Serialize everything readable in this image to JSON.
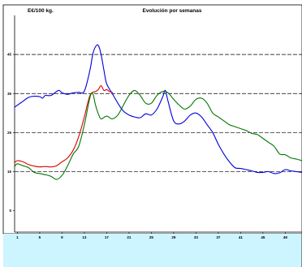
{
  "chart_data": {
    "type": "line",
    "title": "Evolución por semanas",
    "ylabel": "E€/100 kg.",
    "xlabel": "",
    "x_ticks": [
      1,
      5,
      9,
      13,
      17,
      21,
      25,
      29,
      33,
      37,
      41,
      45,
      49
    ],
    "y_ticks": [
      5,
      15,
      25,
      35,
      45
    ],
    "xlim": [
      0.5,
      52
    ],
    "ylim": [
      -0.5,
      55
    ],
    "grid": {
      "horizontal_dashed": [
        15,
        25,
        35,
        45
      ]
    },
    "legend": "none",
    "series": [
      {
        "color": "#0000dd",
        "x": [
          0.5,
          1,
          2,
          3,
          4,
          5,
          5.5,
          6,
          7,
          8,
          8.5,
          9,
          10,
          11,
          12,
          13,
          14,
          14.5,
          15,
          15.5,
          16,
          16.5,
          17,
          18,
          19,
          20,
          21,
          22,
          23,
          24,
          25,
          26,
          27,
          27.5,
          28,
          29,
          30,
          31,
          32,
          33,
          34,
          35,
          36,
          37,
          38,
          39,
          40,
          41,
          42,
          43,
          44,
          45,
          46,
          47,
          48,
          49,
          50,
          51,
          52
        ],
        "values": [
          31.5,
          32,
          33,
          34,
          34.3,
          34.2,
          33.8,
          34.5,
          34.5,
          35.5,
          35.8,
          35.2,
          34.8,
          35.2,
          35.3,
          35.6,
          41,
          45,
          47,
          47.3,
          45,
          41,
          37.5,
          35,
          32.5,
          30.5,
          29.5,
          29,
          28.8,
          29.8,
          29.5,
          31,
          34,
          35.8,
          33,
          28,
          27.2,
          28,
          29.5,
          30,
          29,
          27,
          25,
          22,
          19.5,
          17.5,
          16,
          15.8,
          15.5,
          15.2,
          14.8,
          14.8,
          15,
          14.5,
          14.7,
          15.5,
          15.2,
          15,
          14.8
        ]
      },
      {
        "color": "#dd0000",
        "x": [
          0.5,
          1,
          2,
          3,
          4,
          5,
          6,
          7,
          8,
          9,
          10,
          11,
          12,
          13,
          13.5,
          14,
          14.5,
          15,
          15.5,
          16,
          16.5,
          17,
          17.5,
          18
        ],
        "values": [
          17.3,
          17.8,
          17.5,
          16.8,
          16.4,
          16.2,
          16.3,
          16.2,
          16.5,
          17.5,
          18.5,
          20.5,
          24,
          29,
          32,
          34.5,
          35.3,
          35.5,
          36,
          37,
          35.8,
          36,
          35.5,
          35.3
        ]
      },
      {
        "color": "#007700",
        "x": [
          0.5,
          1,
          2,
          3,
          4,
          5,
          6,
          7,
          8,
          9,
          10,
          11,
          12,
          13,
          14,
          14.5,
          15,
          15.5,
          16,
          17,
          18,
          19,
          20,
          21,
          22,
          23,
          24,
          25,
          26,
          27,
          28,
          29,
          30,
          31,
          32,
          33,
          34,
          35,
          36,
          37,
          38,
          39,
          40,
          41,
          42,
          43,
          44,
          45,
          46,
          47,
          48,
          49,
          50,
          51,
          52
        ],
        "values": [
          16.3,
          17,
          16.5,
          16,
          14.8,
          14.5,
          14.2,
          13.8,
          13,
          14,
          16.5,
          19.5,
          21.5,
          27,
          34,
          35,
          32,
          29.8,
          28.5,
          29.2,
          28.5,
          29.5,
          32,
          34.5,
          35.8,
          34.5,
          32.5,
          32.5,
          34.5,
          35.5,
          35.2,
          33.5,
          32,
          31,
          31.8,
          33.5,
          33.8,
          32.5,
          30,
          29,
          28,
          27,
          26.5,
          26,
          25.5,
          24.8,
          24.5,
          23.5,
          22.5,
          21.5,
          19.5,
          19.3,
          18.5,
          18.2,
          17.8
        ]
      }
    ]
  }
}
